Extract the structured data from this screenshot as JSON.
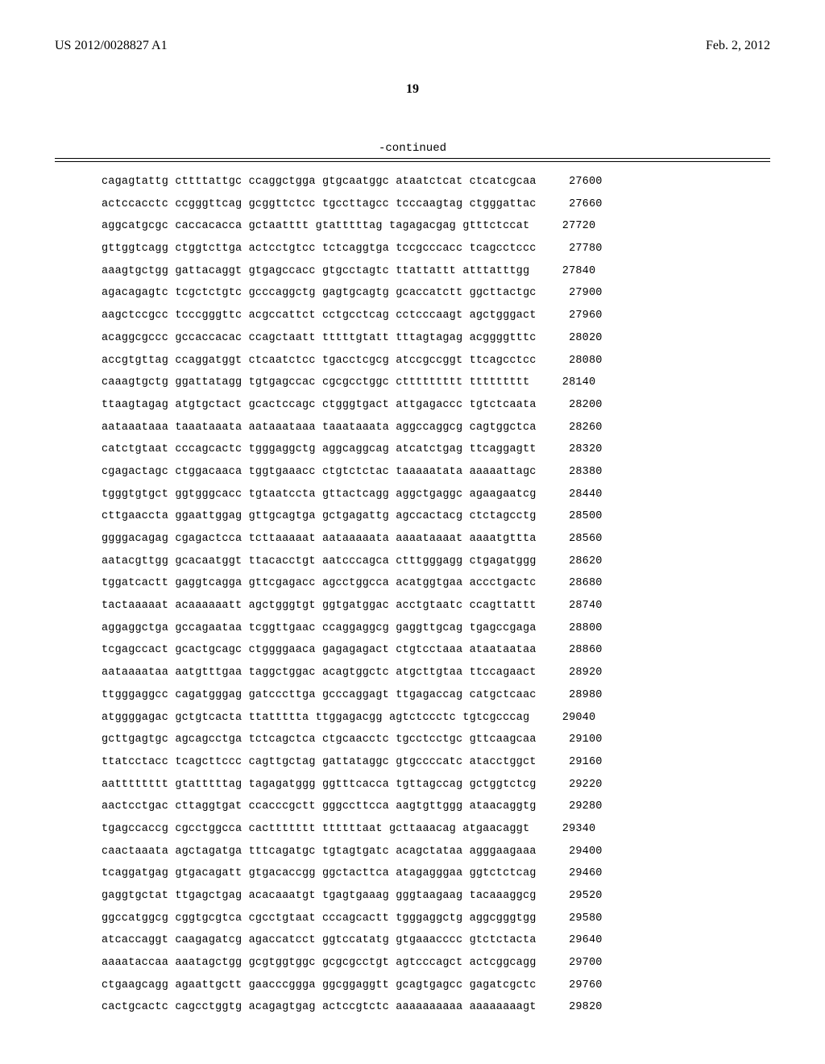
{
  "header": {
    "publication_number": "US 2012/0028827 A1",
    "publication_date": "Feb. 2, 2012",
    "page_number": "19",
    "continued_label": "-continued"
  },
  "sequence": {
    "group_gap": " ",
    "rows": [
      {
        "groups": [
          "cagagtattg",
          "cttttattgc",
          "ccaggctgga",
          "gtgcaatggc",
          "ataatctcat",
          "ctcatcgcaa"
        ],
        "pos": 27600
      },
      {
        "groups": [
          "actccacctc",
          "ccgggttcag",
          "gcggttctcc",
          "tgccttagcc",
          "tcccaagtag",
          "ctgggattac"
        ],
        "pos": 27660
      },
      {
        "groups": [
          "aggcatgcgc",
          "caccacacca",
          "gctaatttt",
          "gtatttttag",
          "tagagacgag",
          "gtttctccat"
        ],
        "pos": 27720
      },
      {
        "groups": [
          "gttggtcagg",
          "ctggtcttga",
          "actcctgtcc",
          "tctcaggtga",
          "tccgcccacc",
          "tcagcctccc"
        ],
        "pos": 27780
      },
      {
        "groups": [
          "aaagtgctgg",
          "gattacaggt",
          "gtgagccacc",
          "gtgcctagtc",
          "ttattattt",
          "atttatttgg"
        ],
        "pos": 27840
      },
      {
        "groups": [
          "agacagagtc",
          "tcgctctgtc",
          "gcccaggctg",
          "gagtgcagtg",
          "gcaccatctt",
          "ggcttactgc"
        ],
        "pos": 27900
      },
      {
        "groups": [
          "aagctccgcc",
          "tcccgggttc",
          "acgccattct",
          "cctgcctcag",
          "cctcccaagt",
          "agctgggact"
        ],
        "pos": 27960
      },
      {
        "groups": [
          "acaggcgccc",
          "gccaccacac",
          "ccagctaatt",
          "tttttgtatt",
          "tttagtagag",
          "acggggtttc"
        ],
        "pos": 28020
      },
      {
        "groups": [
          "accgtgttag",
          "ccaggatggt",
          "ctcaatctcc",
          "tgacctcgcg",
          "atccgccggt",
          "ttcagcctcc"
        ],
        "pos": 28080
      },
      {
        "groups": [
          "caaagtgctg",
          "ggattatagg",
          "tgtgagccac",
          "cgcgcctggc",
          "cttttttttt",
          "ttttttttt"
        ],
        "pos": 28140
      },
      {
        "groups": [
          "ttaagtagag",
          "atgtgctact",
          "gcactccagc",
          "ctgggtgact",
          "attgagaccc",
          "tgtctcaata"
        ],
        "pos": 28200
      },
      {
        "groups": [
          "aataaataaa",
          "taaataaata",
          "aataaataaa",
          "taaataaata",
          "aggccaggcg",
          "cagtggctca"
        ],
        "pos": 28260
      },
      {
        "groups": [
          "catctgtaat",
          "cccagcactc",
          "tgggaggctg",
          "aggcaggcag",
          "atcatctgag",
          "ttcaggagtt"
        ],
        "pos": 28320
      },
      {
        "groups": [
          "cgagactagc",
          "ctggacaaca",
          "tggtgaaacc",
          "ctgtctctac",
          "taaaaatata",
          "aaaaattagc"
        ],
        "pos": 28380
      },
      {
        "groups": [
          "tgggtgtgct",
          "ggtgggcacc",
          "tgtaatccta",
          "gttactcagg",
          "aggctgaggc",
          "agaagaatcg"
        ],
        "pos": 28440
      },
      {
        "groups": [
          "cttgaaccta",
          "ggaattggag",
          "gttgcagtga",
          "gctgagattg",
          "agccactacg",
          "ctctagcctg"
        ],
        "pos": 28500
      },
      {
        "groups": [
          "ggggacagag",
          "cgagactcca",
          "tcttaaaaat",
          "aataaaaata",
          "aaaataaaat",
          "aaaatgttta"
        ],
        "pos": 28560
      },
      {
        "groups": [
          "aatacgttgg",
          "gcacaatggt",
          "ttacacctgt",
          "aatcccagca",
          "ctttgggagg",
          "ctgagatggg"
        ],
        "pos": 28620
      },
      {
        "groups": [
          "tggatcactt",
          "gaggtcagga",
          "gttcgagacc",
          "agcctggcca",
          "acatggtgaa",
          "accctgactc"
        ],
        "pos": 28680
      },
      {
        "groups": [
          "tactaaaaat",
          "acaaaaaatt",
          "agctgggtgt",
          "ggtgatggac",
          "acctgtaatc",
          "ccagttattt"
        ],
        "pos": 28740
      },
      {
        "groups": [
          "aggaggctga",
          "gccagaataa",
          "tcggttgaac",
          "ccaggaggcg",
          "gaggttgcag",
          "tgagccgaga"
        ],
        "pos": 28800
      },
      {
        "groups": [
          "tcgagccact",
          "gcactgcagc",
          "ctggggaaca",
          "gagagagact",
          "ctgtcctaaa",
          "ataataataa"
        ],
        "pos": 28860
      },
      {
        "groups": [
          "aataaaataa",
          "aatgtttgaa",
          "taggctggac",
          "acagtggctc",
          "atgcttgtaa",
          "ttccagaact"
        ],
        "pos": 28920
      },
      {
        "groups": [
          "ttgggaggcc",
          "cagatgggag",
          "gatcccttga",
          "gcccaggagt",
          "ttgagaccag",
          "catgctcaac"
        ],
        "pos": 28980
      },
      {
        "groups": [
          "atggggagac",
          "gctgtcacta",
          "ttattttta",
          "ttggagacgg",
          "agtctccctc",
          "tgtcgcccag"
        ],
        "pos": 29040
      },
      {
        "groups": [
          "gcttgagtgc",
          "agcagcctga",
          "tctcagctca",
          "ctgcaacctc",
          "tgcctcctgc",
          "gttcaagcaa"
        ],
        "pos": 29100
      },
      {
        "groups": [
          "ttatcctacc",
          "tcagcttccc",
          "cagttgctag",
          "gattataggc",
          "gtgccccatc",
          "atacctggct"
        ],
        "pos": 29160
      },
      {
        "groups": [
          "aatttttttt",
          "gtatttttag",
          "tagagatggg",
          "ggtttcacca",
          "tgttagccag",
          "gctggtctcg"
        ],
        "pos": 29220
      },
      {
        "groups": [
          "aactcctgac",
          "cttaggtgat",
          "ccacccgctt",
          "gggccttcca",
          "aagtgttggg",
          "ataacaggtg"
        ],
        "pos": 29280
      },
      {
        "groups": [
          "tgagccaccg",
          "cgcctggcca",
          "cacttttttt",
          "ttttttaat",
          "gcttaaacag",
          "atgaacaggt"
        ],
        "pos": 29340
      },
      {
        "groups": [
          "caactaaata",
          "agctagatga",
          "tttcagatgc",
          "tgtagtgatc",
          "acagctataa",
          "agggaagaaa"
        ],
        "pos": 29400
      },
      {
        "groups": [
          "tcaggatgag",
          "gtgacagatt",
          "gtgacaccgg",
          "ggctacttca",
          "atagagggaa",
          "ggtctctcag"
        ],
        "pos": 29460
      },
      {
        "groups": [
          "gaggtgctat",
          "ttgagctgag",
          "acacaaatgt",
          "tgagtgaaag",
          "gggtaagaag",
          "tacaaaggcg"
        ],
        "pos": 29520
      },
      {
        "groups": [
          "ggccatggcg",
          "cggtgcgtca",
          "cgcctgtaat",
          "cccagcactt",
          "tgggaggctg",
          "aggcgggtgg"
        ],
        "pos": 29580
      },
      {
        "groups": [
          "atcaccaggt",
          "caagagatcg",
          "agaccatcct",
          "ggtccatatg",
          "gtgaaacccc",
          "gtctctacta"
        ],
        "pos": 29640
      },
      {
        "groups": [
          "aaaataccaa",
          "aaatagctgg",
          "gcgtggtggc",
          "gcgcgcctgt",
          "agtcccagct",
          "actcggcagg"
        ],
        "pos": 29700
      },
      {
        "groups": [
          "ctgaagcagg",
          "agaattgctt",
          "gaacccggga",
          "ggcggaggtt",
          "gcagtgagcc",
          "gagatcgctc"
        ],
        "pos": 29760
      },
      {
        "groups": [
          "cactgcactc",
          "cagcctggtg",
          "acagagtgag",
          "actccgtctc",
          "aaaaaaaaaa",
          "aaaaaaaagt"
        ],
        "pos": 29820
      }
    ]
  }
}
